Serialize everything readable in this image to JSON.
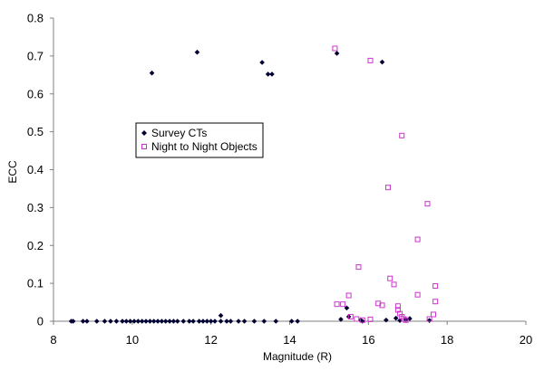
{
  "chart_data": {
    "type": "scatter",
    "title": "",
    "xlabel": "Magnitude (R)",
    "ylabel": "ECC",
    "xlim": [
      8,
      20
    ],
    "ylim": [
      0,
      0.8
    ],
    "xticks": [
      8,
      10,
      12,
      14,
      16,
      18,
      20
    ],
    "yticks": [
      0,
      0.1,
      0.2,
      0.3,
      0.4,
      0.5,
      0.6,
      0.7,
      0.8
    ],
    "xtick_labels": [
      "8",
      "10",
      "12",
      "14",
      "16",
      "18",
      "20"
    ],
    "ytick_labels": [
      "0",
      "0.1",
      "0.2",
      "0.3",
      "0.4",
      "0.5",
      "0.6",
      "0.7",
      "0.8"
    ],
    "grid": false,
    "legend_position": "center-left",
    "series": [
      {
        "name": "Survey CTs",
        "marker": "diamond",
        "color": "#000033",
        "x": [
          10.5,
          11.65,
          13.3,
          13.45,
          13.55,
          15.2,
          16.35,
          8.45,
          8.5,
          8.75,
          8.85,
          9.1,
          9.3,
          9.45,
          9.6,
          9.75,
          9.85,
          9.95,
          10.05,
          10.15,
          10.25,
          10.35,
          10.45,
          10.55,
          10.65,
          10.75,
          10.85,
          10.95,
          11.05,
          11.15,
          11.3,
          11.45,
          11.55,
          11.7,
          11.8,
          11.9,
          12.0,
          12.1,
          12.25,
          12.4,
          12.5,
          12.7,
          12.85,
          13.1,
          13.35,
          13.65,
          14.05,
          14.2,
          12.25,
          15.3,
          15.45,
          15.5,
          15.8,
          15.85,
          16.45,
          16.7,
          16.8,
          16.95,
          17.05,
          17.55
        ],
        "y": [
          0.655,
          0.71,
          0.683,
          0.652,
          0.652,
          0.707,
          0.684,
          0,
          0,
          0,
          0,
          0,
          0,
          0,
          0,
          0,
          0,
          0,
          0,
          0,
          0,
          0,
          0,
          0,
          0,
          0,
          0,
          0,
          0,
          0,
          0,
          0,
          0,
          0,
          0,
          0,
          0,
          0,
          0,
          0,
          0,
          0,
          0,
          0,
          0,
          0,
          0,
          0,
          0.015,
          0.005,
          0.035,
          0.012,
          0.003,
          0.0,
          0.003,
          0.008,
          0.002,
          0.004,
          0.007,
          0.002
        ]
      },
      {
        "name": "Night to Night Objects",
        "marker": "square-open",
        "color": "#cc33cc",
        "x": [
          15.15,
          16.05,
          16.85,
          16.5,
          17.5,
          17.25,
          15.75,
          16.55,
          17.7,
          16.65,
          17.25,
          15.5,
          15.2,
          15.35,
          16.25,
          16.35,
          16.75,
          16.75,
          17.7,
          16.8,
          16.85,
          16.9,
          15.55,
          15.7,
          15.85,
          16.05,
          16.95,
          17.65,
          17.55
        ],
        "y": [
          0.72,
          0.688,
          0.49,
          0.353,
          0.31,
          0.216,
          0.143,
          0.113,
          0.093,
          0.097,
          0.07,
          0.068,
          0.045,
          0.045,
          0.047,
          0.042,
          0.04,
          0.03,
          0.052,
          0.02,
          0.012,
          0.006,
          0.012,
          0.006,
          0.003,
          0.005,
          0.003,
          0.018,
          0.006
        ]
      }
    ]
  }
}
